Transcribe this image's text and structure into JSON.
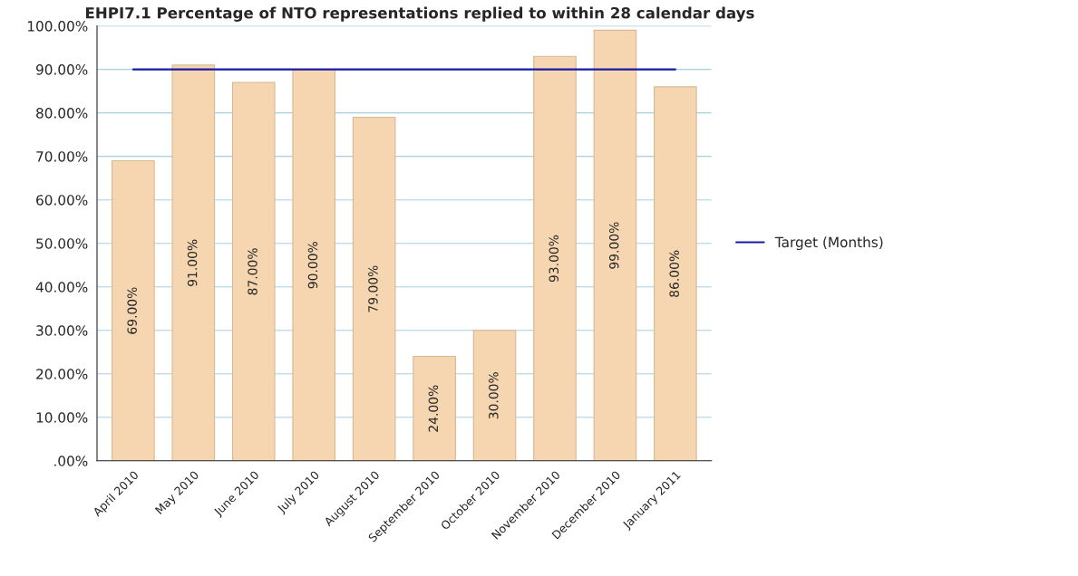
{
  "chart_data": {
    "type": "bar",
    "title": "EHPI7.1 Percentage of NTO representations replied to within 28 calendar days",
    "categories": [
      "April 2010",
      "May 2010",
      "June 2010",
      "July 2010",
      "August 2010",
      "September 2010",
      "October 2010",
      "November 2010",
      "December 2010",
      "January 2011"
    ],
    "series": [
      {
        "color": "#f5d6b0",
        "values": [
          69,
          91,
          87,
          90,
          79,
          24,
          30,
          93,
          99,
          86
        ],
        "value_labels": [
          "69.00%",
          "91.00%",
          "87.00%",
          "90.00%",
          "79.00%",
          "24.00%",
          "30.00%",
          "93.00%",
          "99.00%",
          "86.00%"
        ]
      },
      {
        "type": "line",
        "name": "Target (Months)",
        "color": "#1a1aa6",
        "values": [
          90,
          90,
          90,
          90,
          90,
          90,
          90,
          90,
          90,
          90
        ]
      }
    ],
    "ylim": [
      0,
      100
    ],
    "yticks": [
      {
        "value": 0,
        "label": ".00%"
      },
      {
        "value": 10,
        "label": "10.00%"
      },
      {
        "value": 20,
        "label": "20.00%"
      },
      {
        "value": 30,
        "label": "30.00%"
      },
      {
        "value": 40,
        "label": "40.00%"
      },
      {
        "value": 50,
        "label": "50.00%"
      },
      {
        "value": 60,
        "label": "60.00%"
      },
      {
        "value": 70,
        "label": "70.00%"
      },
      {
        "value": 80,
        "label": "80.00%"
      },
      {
        "value": 90,
        "label": "90.00%"
      },
      {
        "value": 100,
        "label": "100.00%"
      }
    ],
    "grid": "y",
    "legend": "right"
  }
}
